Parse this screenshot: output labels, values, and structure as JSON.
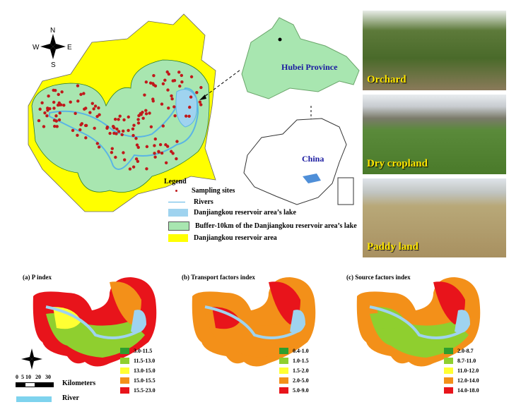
{
  "compass": {
    "n": "N",
    "s": "S",
    "e": "E",
    "w": "W"
  },
  "inset": {
    "province_label": "Hubei Province",
    "country_label": "China"
  },
  "legend": {
    "title": "Legend",
    "items": [
      {
        "label": "Sampling sites",
        "color": "#c0191b"
      },
      {
        "label": "Rivers",
        "color": "#5ab4e5"
      },
      {
        "label": "Danjiangkou reservoir area’s lake",
        "color": "#9fd3ef"
      },
      {
        "label": "Buffer-10km of the Danjiangkou reservoir area’s lake",
        "color": "#a8e6b0"
      },
      {
        "label": "Danjiangkou reservoir area",
        "color": "#ffff00"
      }
    ]
  },
  "photos": [
    {
      "label": "Orchard"
    },
    {
      "label": "Dry cropland"
    },
    {
      "label": "Paddy land"
    }
  ],
  "panels": [
    {
      "title": "(a)  P index",
      "classes": [
        {
          "label": "3.0-11.5",
          "color": "#2e9e2e"
        },
        {
          "label": "11.5-13.0",
          "color": "#8fcf2f"
        },
        {
          "label": "13.0-15.0",
          "color": "#ffff33"
        },
        {
          "label": "15.0-15.5",
          "color": "#f39019"
        },
        {
          "label": "15.5-23.0",
          "color": "#e8141b"
        }
      ]
    },
    {
      "title": "(b)  Transport factors index",
      "classes": [
        {
          "label": "0.4-1.0",
          "color": "#2e9e2e"
        },
        {
          "label": "1.0-1.5",
          "color": "#8fcf2f"
        },
        {
          "label": "1.5-2.0",
          "color": "#ffff33"
        },
        {
          "label": "2.0-5.0",
          "color": "#f39019"
        },
        {
          "label": "5.0-9.0",
          "color": "#e8141b"
        }
      ]
    },
    {
      "title": "(c)  Source factors index",
      "classes": [
        {
          "label": "2.0-8.7",
          "color": "#2e9e2e"
        },
        {
          "label": "8.7-11.0",
          "color": "#8fcf2f"
        },
        {
          "label": "11.0-12.0",
          "color": "#ffff33"
        },
        {
          "label": "12.0-14.0",
          "color": "#f39019"
        },
        {
          "label": "14.0-18.0",
          "color": "#e8141b"
        }
      ]
    }
  ],
  "scale": {
    "river_label": "River",
    "ticks": "0  5 10   20   30",
    "unit": "Kilometers"
  }
}
